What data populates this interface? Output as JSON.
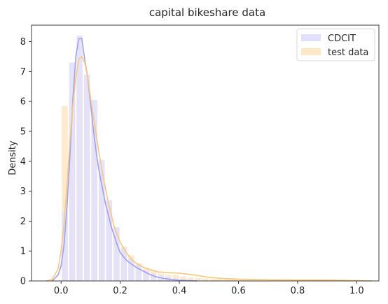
{
  "chart_data": {
    "type": "bar",
    "title": "capital bikeshare data",
    "xlabel": "",
    "ylabel": "Density",
    "xlim": [
      -0.1,
      1.075
    ],
    "ylim": [
      0,
      8.55
    ],
    "xticks": [
      0.0,
      0.2,
      0.4,
      0.6,
      0.8,
      1.0
    ],
    "xtick_labels": [
      "0.0",
      "0.2",
      "0.4",
      "0.6",
      "0.8",
      "1.0"
    ],
    "yticks": [
      0,
      1,
      2,
      3,
      4,
      5,
      6,
      7,
      8
    ],
    "ytick_labels": [
      "0",
      "1",
      "2",
      "3",
      "4",
      "5",
      "6",
      "7",
      "8"
    ],
    "grid": false,
    "legend_position": "top-right",
    "series": [
      {
        "name": "CDCIT",
        "color": "#9f9ff7",
        "bar_color": "#e1dffd",
        "histogram": {
          "edges": [
            0.0,
            0.025,
            0.05,
            0.075,
            0.1,
            0.125,
            0.15,
            0.175,
            0.2,
            0.225,
            0.25,
            0.275,
            0.3,
            0.325,
            0.35,
            0.375,
            0.4,
            0.425
          ],
          "densities": [
            2.3,
            7.3,
            8.2,
            6.9,
            6.05,
            4.05,
            2.7,
            1.8,
            1.1,
            0.75,
            0.55,
            0.35,
            0.25,
            0.18,
            0.12,
            0.08,
            0.05
          ]
        },
        "kde": {
          "x": [
            -0.03,
            -0.01,
            0.0,
            0.01,
            0.02,
            0.03,
            0.04,
            0.05,
            0.06,
            0.07,
            0.08,
            0.09,
            0.1,
            0.11,
            0.12,
            0.13,
            0.14,
            0.15,
            0.16,
            0.17,
            0.18,
            0.19,
            0.2,
            0.22,
            0.24,
            0.26,
            0.28,
            0.3,
            0.32,
            0.35,
            0.38,
            0.4,
            0.43,
            0.46
          ],
          "y": [
            0.0,
            0.2,
            0.5,
            1.2,
            2.5,
            4.2,
            6.1,
            7.5,
            8.1,
            8.1,
            7.4,
            6.8,
            5.9,
            5.0,
            4.2,
            3.6,
            3.1,
            2.6,
            2.2,
            1.8,
            1.5,
            1.2,
            0.95,
            0.7,
            0.55,
            0.42,
            0.32,
            0.22,
            0.14,
            0.08,
            0.04,
            0.02,
            0.01,
            0.0
          ]
        }
      },
      {
        "name": "test data",
        "color": "#f9c878",
        "bar_color": "#fde8c6",
        "histogram": {
          "edges": [
            0.0,
            0.025,
            0.05,
            0.075,
            0.1,
            0.125,
            0.15,
            0.175,
            0.2,
            0.225,
            0.25,
            0.275,
            0.3,
            0.325,
            0.35,
            0.375,
            0.4,
            0.425,
            0.45,
            0.475,
            0.5,
            0.55,
            0.6,
            0.7,
            0.8,
            0.9,
            1.0
          ],
          "densities": [
            5.85,
            6.1,
            6.95,
            6.9,
            5.4,
            3.6,
            2.5,
            1.75,
            1.15,
            0.85,
            0.6,
            0.45,
            0.35,
            0.25,
            0.2,
            0.2,
            0.15,
            0.12,
            0.1,
            0.08,
            0.06,
            0.05,
            0.04,
            0.03,
            0.02,
            0.02
          ]
        },
        "kde": {
          "x": [
            -0.05,
            -0.03,
            -0.01,
            0.0,
            0.01,
            0.02,
            0.03,
            0.04,
            0.05,
            0.06,
            0.07,
            0.08,
            0.09,
            0.1,
            0.12,
            0.14,
            0.16,
            0.18,
            0.2,
            0.22,
            0.24,
            0.26,
            0.28,
            0.3,
            0.33,
            0.36,
            0.4,
            0.45,
            0.5,
            0.55,
            0.6,
            0.65,
            0.7,
            0.8,
            0.9,
            0.95,
            1.0,
            1.05
          ],
          "y": [
            0.0,
            0.05,
            0.4,
            1.0,
            1.9,
            3.2,
            4.7,
            5.9,
            6.8,
            7.4,
            7.5,
            7.3,
            6.8,
            6.1,
            4.8,
            3.6,
            2.6,
            1.8,
            1.3,
            0.95,
            0.7,
            0.55,
            0.45,
            0.38,
            0.3,
            0.28,
            0.26,
            0.2,
            0.12,
            0.08,
            0.06,
            0.05,
            0.04,
            0.03,
            0.03,
            0.02,
            0.01,
            0.0
          ]
        }
      }
    ]
  }
}
